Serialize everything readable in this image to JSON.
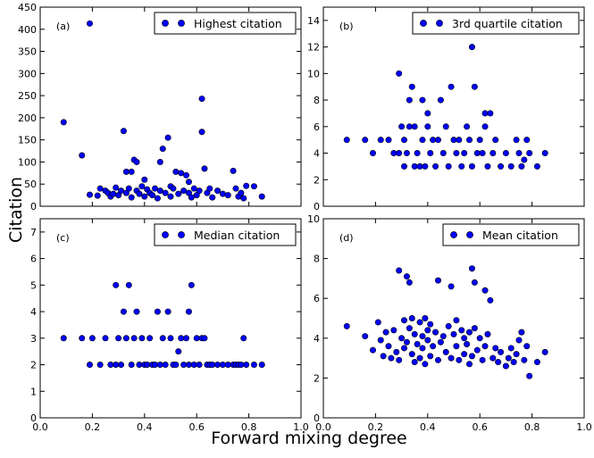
{
  "chart_data": {
    "type": "scatter",
    "figure_ylabel": "Citation",
    "figure_xlabel": "Forward mixing degree",
    "x_ticks": [
      "0.0",
      "0.2",
      "0.4",
      "0.6",
      "0.8",
      "1.0"
    ],
    "marker_color": "#0000ff",
    "marker_edge": "#000000",
    "panels": [
      {
        "id": "a",
        "label": "(a)",
        "legend": "Highest citation",
        "xlim": [
          0,
          1
        ],
        "ylim": [
          0,
          450
        ],
        "yticks": [
          0,
          50,
          100,
          150,
          200,
          250,
          300,
          350,
          400,
          450
        ],
        "points": [
          [
            0.09,
            190
          ],
          [
            0.16,
            115
          ],
          [
            0.19,
            413
          ],
          [
            0.19,
            26
          ],
          [
            0.22,
            24
          ],
          [
            0.23,
            40
          ],
          [
            0.25,
            35
          ],
          [
            0.26,
            30
          ],
          [
            0.27,
            22
          ],
          [
            0.28,
            28
          ],
          [
            0.29,
            42
          ],
          [
            0.3,
            25
          ],
          [
            0.31,
            35
          ],
          [
            0.32,
            170
          ],
          [
            0.33,
            30
          ],
          [
            0.33,
            78
          ],
          [
            0.34,
            40
          ],
          [
            0.35,
            78
          ],
          [
            0.35,
            20
          ],
          [
            0.36,
            105
          ],
          [
            0.37,
            35
          ],
          [
            0.37,
            100
          ],
          [
            0.38,
            28
          ],
          [
            0.39,
            45
          ],
          [
            0.4,
            22
          ],
          [
            0.4,
            60
          ],
          [
            0.41,
            38
          ],
          [
            0.42,
            30
          ],
          [
            0.43,
            25
          ],
          [
            0.44,
            40
          ],
          [
            0.45,
            18
          ],
          [
            0.46,
            100
          ],
          [
            0.46,
            35
          ],
          [
            0.47,
            130
          ],
          [
            0.48,
            30
          ],
          [
            0.49,
            155
          ],
          [
            0.5,
            22
          ],
          [
            0.5,
            45
          ],
          [
            0.51,
            40
          ],
          [
            0.52,
            78
          ],
          [
            0.53,
            28
          ],
          [
            0.54,
            75
          ],
          [
            0.55,
            35
          ],
          [
            0.56,
            70
          ],
          [
            0.57,
            30
          ],
          [
            0.57,
            55
          ],
          [
            0.58,
            20
          ],
          [
            0.59,
            40
          ],
          [
            0.6,
            25
          ],
          [
            0.61,
            35
          ],
          [
            0.62,
            168
          ],
          [
            0.62,
            243
          ],
          [
            0.63,
            85
          ],
          [
            0.64,
            30
          ],
          [
            0.65,
            40
          ],
          [
            0.66,
            20
          ],
          [
            0.68,
            35
          ],
          [
            0.7,
            28
          ],
          [
            0.72,
            25
          ],
          [
            0.74,
            80
          ],
          [
            0.75,
            40
          ],
          [
            0.76,
            22
          ],
          [
            0.77,
            30
          ],
          [
            0.78,
            18
          ],
          [
            0.79,
            46
          ],
          [
            0.82,
            45
          ],
          [
            0.85,
            22
          ]
        ]
      },
      {
        "id": "b",
        "label": "(b)",
        "legend": "3rd quartile citation",
        "xlim": [
          0,
          1
        ],
        "ylim": [
          0,
          15
        ],
        "yticks": [
          0,
          2,
          4,
          6,
          8,
          10,
          12,
          14
        ],
        "points": [
          [
            0.09,
            5
          ],
          [
            0.16,
            5
          ],
          [
            0.19,
            4
          ],
          [
            0.22,
            5
          ],
          [
            0.25,
            5
          ],
          [
            0.27,
            4
          ],
          [
            0.29,
            4
          ],
          [
            0.29,
            10
          ],
          [
            0.3,
            6
          ],
          [
            0.31,
            3
          ],
          [
            0.31,
            5
          ],
          [
            0.32,
            4
          ],
          [
            0.33,
            6
          ],
          [
            0.33,
            8
          ],
          [
            0.34,
            9
          ],
          [
            0.35,
            3
          ],
          [
            0.35,
            6
          ],
          [
            0.36,
            4
          ],
          [
            0.37,
            3
          ],
          [
            0.38,
            8
          ],
          [
            0.38,
            5
          ],
          [
            0.39,
            3
          ],
          [
            0.4,
            6
          ],
          [
            0.4,
            7
          ],
          [
            0.41,
            4
          ],
          [
            0.42,
            5
          ],
          [
            0.43,
            3
          ],
          [
            0.44,
            5
          ],
          [
            0.45,
            8
          ],
          [
            0.46,
            4
          ],
          [
            0.47,
            6
          ],
          [
            0.48,
            3
          ],
          [
            0.49,
            9
          ],
          [
            0.5,
            5
          ],
          [
            0.51,
            4
          ],
          [
            0.52,
            5
          ],
          [
            0.53,
            3
          ],
          [
            0.54,
            4
          ],
          [
            0.55,
            6
          ],
          [
            0.56,
            5
          ],
          [
            0.57,
            3
          ],
          [
            0.57,
            12
          ],
          [
            0.58,
            9
          ],
          [
            0.59,
            4
          ],
          [
            0.6,
            5
          ],
          [
            0.61,
            4
          ],
          [
            0.62,
            6
          ],
          [
            0.62,
            7
          ],
          [
            0.63,
            3
          ],
          [
            0.64,
            7
          ],
          [
            0.65,
            4
          ],
          [
            0.66,
            5
          ],
          [
            0.68,
            3
          ],
          [
            0.7,
            4
          ],
          [
            0.72,
            3
          ],
          [
            0.74,
            5
          ],
          [
            0.75,
            4
          ],
          [
            0.76,
            3
          ],
          [
            0.77,
            3.5
          ],
          [
            0.78,
            5
          ],
          [
            0.79,
            4
          ],
          [
            0.82,
            3
          ],
          [
            0.85,
            4
          ]
        ]
      },
      {
        "id": "c",
        "label": "(c)",
        "legend": "Median citation",
        "xlim": [
          0,
          1
        ],
        "ylim": [
          0,
          7.5
        ],
        "yticks": [
          0,
          1,
          2,
          3,
          4,
          5,
          6,
          7
        ],
        "points": [
          [
            0.09,
            3
          ],
          [
            0.16,
            3
          ],
          [
            0.19,
            2
          ],
          [
            0.2,
            3
          ],
          [
            0.23,
            2
          ],
          [
            0.25,
            3
          ],
          [
            0.27,
            2
          ],
          [
            0.29,
            5
          ],
          [
            0.29,
            2
          ],
          [
            0.3,
            3
          ],
          [
            0.31,
            2
          ],
          [
            0.32,
            4
          ],
          [
            0.33,
            3
          ],
          [
            0.34,
            5
          ],
          [
            0.35,
            2
          ],
          [
            0.36,
            3
          ],
          [
            0.37,
            4
          ],
          [
            0.38,
            2
          ],
          [
            0.39,
            3
          ],
          [
            0.4,
            2
          ],
          [
            0.41,
            2
          ],
          [
            0.42,
            3
          ],
          [
            0.43,
            2
          ],
          [
            0.44,
            2
          ],
          [
            0.45,
            4
          ],
          [
            0.46,
            2
          ],
          [
            0.47,
            3
          ],
          [
            0.48,
            2
          ],
          [
            0.49,
            4
          ],
          [
            0.5,
            3
          ],
          [
            0.51,
            2
          ],
          [
            0.52,
            2
          ],
          [
            0.53,
            2.5
          ],
          [
            0.54,
            3
          ],
          [
            0.55,
            2
          ],
          [
            0.56,
            3
          ],
          [
            0.57,
            2
          ],
          [
            0.57,
            4
          ],
          [
            0.58,
            5
          ],
          [
            0.59,
            2
          ],
          [
            0.6,
            3
          ],
          [
            0.61,
            2
          ],
          [
            0.62,
            3
          ],
          [
            0.63,
            3
          ],
          [
            0.64,
            2
          ],
          [
            0.65,
            2
          ],
          [
            0.66,
            2
          ],
          [
            0.68,
            2
          ],
          [
            0.7,
            2
          ],
          [
            0.72,
            2
          ],
          [
            0.74,
            2
          ],
          [
            0.75,
            2
          ],
          [
            0.76,
            2
          ],
          [
            0.77,
            2
          ],
          [
            0.78,
            3
          ],
          [
            0.79,
            2
          ],
          [
            0.82,
            2
          ],
          [
            0.85,
            2
          ]
        ]
      },
      {
        "id": "d",
        "label": "(d)",
        "legend": "Mean citation",
        "xlim": [
          0,
          1
        ],
        "ylim": [
          0,
          10
        ],
        "yticks": [
          0,
          2,
          4,
          6,
          8,
          10
        ],
        "points": [
          [
            0.09,
            4.6
          ],
          [
            0.16,
            4.1
          ],
          [
            0.19,
            3.4
          ],
          [
            0.21,
            4.8
          ],
          [
            0.22,
            3.9
          ],
          [
            0.23,
            3.1
          ],
          [
            0.24,
            4.3
          ],
          [
            0.25,
            3.6
          ],
          [
            0.26,
            3.0
          ],
          [
            0.27,
            4.4
          ],
          [
            0.28,
            3.3
          ],
          [
            0.29,
            7.4
          ],
          [
            0.29,
            2.9
          ],
          [
            0.3,
            4.0
          ],
          [
            0.31,
            4.9
          ],
          [
            0.31,
            3.5
          ],
          [
            0.32,
            7.1
          ],
          [
            0.32,
            3.8
          ],
          [
            0.33,
            4.5
          ],
          [
            0.33,
            6.8
          ],
          [
            0.34,
            3.2
          ],
          [
            0.34,
            5.0
          ],
          [
            0.35,
            4.2
          ],
          [
            0.35,
            2.8
          ],
          [
            0.36,
            3.7
          ],
          [
            0.37,
            4.8
          ],
          [
            0.37,
            3.0
          ],
          [
            0.38,
            4.1
          ],
          [
            0.38,
            3.5
          ],
          [
            0.39,
            5.0
          ],
          [
            0.39,
            2.7
          ],
          [
            0.4,
            3.9
          ],
          [
            0.4,
            4.4
          ],
          [
            0.41,
            3.1
          ],
          [
            0.41,
            4.7
          ],
          [
            0.42,
            3.6
          ],
          [
            0.43,
            4.3
          ],
          [
            0.44,
            2.9
          ],
          [
            0.44,
            6.9
          ],
          [
            0.45,
            3.8
          ],
          [
            0.46,
            4.1
          ],
          [
            0.47,
            3.3
          ],
          [
            0.48,
            4.6
          ],
          [
            0.49,
            3.0
          ],
          [
            0.49,
            6.6
          ],
          [
            0.5,
            4.2
          ],
          [
            0.51,
            3.6
          ],
          [
            0.51,
            4.9
          ],
          [
            0.52,
            2.9
          ],
          [
            0.53,
            4.4
          ],
          [
            0.54,
            3.2
          ],
          [
            0.54,
            4.0
          ],
          [
            0.55,
            3.7
          ],
          [
            0.56,
            2.7
          ],
          [
            0.56,
            4.3
          ],
          [
            0.57,
            7.5
          ],
          [
            0.57,
            3.1
          ],
          [
            0.58,
            6.8
          ],
          [
            0.58,
            4.5
          ],
          [
            0.59,
            3.4
          ],
          [
            0.6,
            4.0
          ],
          [
            0.61,
            2.9
          ],
          [
            0.62,
            6.4
          ],
          [
            0.62,
            3.6
          ],
          [
            0.63,
            4.2
          ],
          [
            0.64,
            5.9
          ],
          [
            0.65,
            3.0
          ],
          [
            0.66,
            3.5
          ],
          [
            0.67,
            2.8
          ],
          [
            0.68,
            3.3
          ],
          [
            0.7,
            2.6
          ],
          [
            0.71,
            3.0
          ],
          [
            0.72,
            3.5
          ],
          [
            0.73,
            2.8
          ],
          [
            0.74,
            3.2
          ],
          [
            0.75,
            3.9
          ],
          [
            0.76,
            4.3
          ],
          [
            0.77,
            2.9
          ],
          [
            0.78,
            3.6
          ],
          [
            0.79,
            2.1
          ],
          [
            0.82,
            2.8
          ],
          [
            0.85,
            3.3
          ]
        ]
      }
    ]
  }
}
